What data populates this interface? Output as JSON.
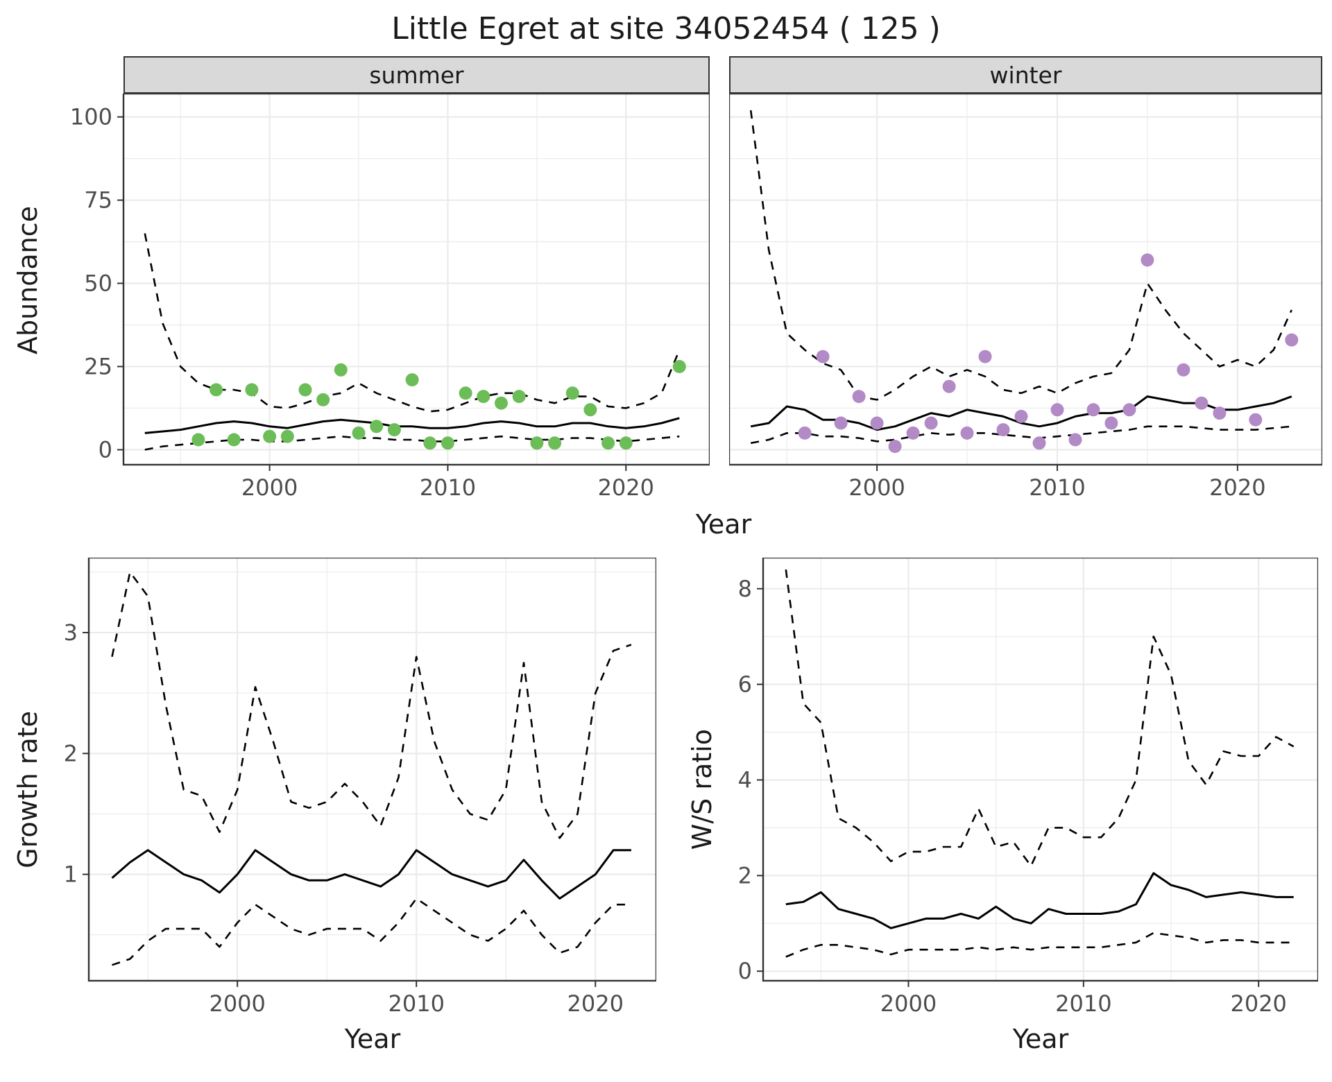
{
  "title": "Little Egret at site 34052454 ( 125 )",
  "axis_labels": {
    "abundance": "Abundance",
    "year_top": "Year",
    "growth_rate": "Growth rate",
    "ws_ratio": "W/S ratio",
    "year_bottom_left": "Year",
    "year_bottom_right": "Year"
  },
  "colors": {
    "summer_points": "#6cbd57",
    "winter_points": "#b28ac6",
    "line": "#000000",
    "strip_bg": "#d9d9d9",
    "grid": "#ebebeb",
    "panel_border": "#333333"
  },
  "chart_data": [
    {
      "id": "abundance-summer",
      "type": "line+scatter",
      "facet_label": "summer",
      "xlabel": "Year",
      "ylabel": "Abundance",
      "xlim": [
        1991.8,
        2024.7
      ],
      "ylim": [
        -4.5,
        107
      ],
      "xticks": [
        2000,
        2010,
        2020
      ],
      "yticks": [
        0,
        25,
        50,
        75,
        100
      ],
      "x": [
        1993,
        1994,
        1995,
        1996,
        1997,
        1998,
        1999,
        2000,
        2001,
        2002,
        2003,
        2004,
        2005,
        2006,
        2007,
        2008,
        2009,
        2010,
        2011,
        2012,
        2013,
        2014,
        2015,
        2016,
        2017,
        2018,
        2019,
        2020,
        2021,
        2022,
        2023
      ],
      "series": [
        {
          "name": "mean",
          "style": "solid",
          "values": [
            5,
            5.5,
            6,
            7,
            8,
            8.5,
            8,
            7,
            6.5,
            7.5,
            8.5,
            9,
            8.5,
            8,
            7,
            7,
            6.5,
            6.5,
            7,
            8,
            8.5,
            8,
            7,
            7,
            8,
            8,
            7,
            6.5,
            7,
            8,
            9.5
          ]
        },
        {
          "name": "upper_ci",
          "style": "dashed",
          "values": [
            65,
            38,
            25,
            20,
            18,
            18,
            17,
            13,
            12.5,
            14,
            16,
            17,
            20,
            17,
            15,
            13,
            11.5,
            12,
            14,
            16,
            17,
            17,
            15,
            14,
            16,
            16,
            13,
            12.5,
            14,
            17,
            30
          ]
        },
        {
          "name": "lower_ci",
          "style": "dashed",
          "values": [
            0,
            1,
            1.5,
            2,
            2.5,
            3,
            3,
            2.5,
            2.5,
            3,
            3.5,
            4,
            3.5,
            3.5,
            3,
            3,
            2.5,
            2.5,
            3,
            3.5,
            4,
            3.5,
            3,
            3,
            3.5,
            3.5,
            3,
            2.5,
            3,
            3.5,
            4
          ]
        }
      ],
      "points": {
        "name": "observed-counts",
        "color_key": "summer_points",
        "x": [
          1996,
          1997,
          1998,
          1999,
          2000,
          2001,
          2002,
          2003,
          2004,
          2005,
          2006,
          2007,
          2008,
          2009,
          2010,
          2011,
          2012,
          2013,
          2014,
          2015,
          2016,
          2017,
          2018,
          2019,
          2020,
          2023
        ],
        "y": [
          3,
          18,
          3,
          18,
          4,
          4,
          18,
          15,
          24,
          5,
          7,
          6,
          21,
          2,
          2,
          17,
          16,
          14,
          16,
          2,
          2,
          17,
          12,
          2,
          2,
          25
        ]
      }
    },
    {
      "id": "abundance-winter",
      "type": "line+scatter",
      "facet_label": "winter",
      "xlabel": "Year",
      "ylabel": "Abundance",
      "xlim": [
        1991.8,
        2024.7
      ],
      "ylim": [
        -4.5,
        107
      ],
      "xticks": [
        2000,
        2010,
        2020
      ],
      "yticks": [
        0,
        25,
        50,
        75,
        100
      ],
      "x": [
        1993,
        1994,
        1995,
        1996,
        1997,
        1998,
        1999,
        2000,
        2001,
        2002,
        2003,
        2004,
        2005,
        2006,
        2007,
        2008,
        2009,
        2010,
        2011,
        2012,
        2013,
        2014,
        2015,
        2016,
        2017,
        2018,
        2019,
        2020,
        2021,
        2022,
        2023
      ],
      "series": [
        {
          "name": "mean",
          "style": "solid",
          "values": [
            7,
            8,
            13,
            12,
            9,
            9,
            8,
            6,
            7,
            9,
            11,
            10,
            12,
            11,
            10,
            8,
            7,
            8,
            10,
            11,
            11,
            12,
            16,
            15,
            14,
            14,
            12,
            12,
            13,
            14,
            16
          ]
        },
        {
          "name": "upper_ci",
          "style": "dashed",
          "values": [
            102,
            60,
            35,
            30,
            26,
            24,
            16,
            15,
            18,
            22,
            25,
            22,
            24,
            22,
            18,
            17,
            19,
            17,
            20,
            22,
            23,
            30,
            50,
            42,
            35,
            30,
            25,
            27,
            25,
            30,
            42
          ]
        },
        {
          "name": "lower_ci",
          "style": "dashed",
          "values": [
            2,
            3,
            5,
            5,
            4,
            4,
            3.5,
            2.5,
            3,
            4,
            5,
            4.5,
            5,
            5,
            4.5,
            4,
            3.5,
            4,
            4.5,
            5,
            5.5,
            6,
            7,
            7,
            7,
            6.5,
            6,
            6,
            6,
            6.5,
            7
          ]
        }
      ],
      "points": {
        "name": "observed-counts",
        "color_key": "winter_points",
        "x": [
          1996,
          1997,
          1998,
          1999,
          2000,
          2001,
          2002,
          2003,
          2004,
          2005,
          2006,
          2007,
          2008,
          2009,
          2010,
          2011,
          2012,
          2013,
          2014,
          2015,
          2017,
          2018,
          2019,
          2021,
          2023
        ],
        "y": [
          5,
          28,
          8,
          16,
          8,
          1,
          5,
          8,
          19,
          5,
          28,
          6,
          10,
          2,
          12,
          3,
          12,
          8,
          12,
          57,
          24,
          14,
          11,
          9,
          33
        ]
      }
    },
    {
      "id": "growth-rate",
      "type": "line",
      "facet_label": "",
      "xlabel": "Year",
      "ylabel": "Growth rate",
      "xlim": [
        1991.7,
        2023.4
      ],
      "ylim": [
        0.12,
        3.62
      ],
      "xticks": [
        2000,
        2010,
        2020
      ],
      "yticks": [
        1,
        2,
        3
      ],
      "x": [
        1993,
        1994,
        1995,
        1996,
        1997,
        1998,
        1999,
        2000,
        2001,
        2002,
        2003,
        2004,
        2005,
        2006,
        2007,
        2008,
        2009,
        2010,
        2011,
        2012,
        2013,
        2014,
        2015,
        2016,
        2017,
        2018,
        2019,
        2020,
        2021,
        2022
      ],
      "series": [
        {
          "name": "mean",
          "style": "solid",
          "values": [
            0.97,
            1.1,
            1.2,
            1.1,
            1.0,
            0.95,
            0.85,
            1.0,
            1.2,
            1.1,
            1.0,
            0.95,
            0.95,
            1.0,
            0.95,
            0.9,
            1.0,
            1.2,
            1.1,
            1.0,
            0.95,
            0.9,
            0.95,
            1.12,
            0.95,
            0.8,
            0.9,
            1.0,
            1.2,
            1.2
          ]
        },
        {
          "name": "upper_ci",
          "style": "dashed",
          "values": [
            2.8,
            3.5,
            3.3,
            2.4,
            1.7,
            1.65,
            1.35,
            1.7,
            2.55,
            2.1,
            1.6,
            1.55,
            1.6,
            1.75,
            1.6,
            1.4,
            1.8,
            2.8,
            2.1,
            1.7,
            1.5,
            1.45,
            1.7,
            2.75,
            1.6,
            1.3,
            1.5,
            2.5,
            2.85,
            2.9
          ]
        },
        {
          "name": "lower_ci",
          "style": "dashed",
          "values": [
            0.25,
            0.3,
            0.45,
            0.55,
            0.55,
            0.55,
            0.4,
            0.6,
            0.75,
            0.65,
            0.55,
            0.5,
            0.55,
            0.55,
            0.55,
            0.45,
            0.6,
            0.8,
            0.7,
            0.6,
            0.5,
            0.45,
            0.55,
            0.7,
            0.5,
            0.35,
            0.4,
            0.6,
            0.75,
            0.75
          ]
        }
      ]
    },
    {
      "id": "ws-ratio",
      "type": "line",
      "facet_label": "",
      "xlabel": "Year",
      "ylabel": "W/S ratio",
      "xlim": [
        1991.7,
        2023.4
      ],
      "ylim": [
        -0.2,
        8.65
      ],
      "xticks": [
        2000,
        2010,
        2020
      ],
      "yticks": [
        0,
        2,
        4,
        6,
        8
      ],
      "x": [
        1993,
        1994,
        1995,
        1996,
        1997,
        1998,
        1999,
        2000,
        2001,
        2002,
        2003,
        2004,
        2005,
        2006,
        2007,
        2008,
        2009,
        2010,
        2011,
        2012,
        2013,
        2014,
        2015,
        2016,
        2017,
        2018,
        2019,
        2020,
        2021,
        2022
      ],
      "series": [
        {
          "name": "mean",
          "style": "solid",
          "values": [
            1.4,
            1.45,
            1.65,
            1.3,
            1.2,
            1.1,
            0.9,
            1.0,
            1.1,
            1.1,
            1.2,
            1.1,
            1.35,
            1.1,
            1.0,
            1.3,
            1.2,
            1.2,
            1.2,
            1.25,
            1.4,
            2.05,
            1.8,
            1.7,
            1.55,
            1.6,
            1.65,
            1.6,
            1.55,
            1.55
          ]
        },
        {
          "name": "upper_ci",
          "style": "dashed",
          "values": [
            8.4,
            5.6,
            5.2,
            3.2,
            3.0,
            2.7,
            2.3,
            2.5,
            2.5,
            2.6,
            2.6,
            3.4,
            2.6,
            2.7,
            2.2,
            3.0,
            3.0,
            2.8,
            2.8,
            3.2,
            4.0,
            7.0,
            6.2,
            4.4,
            3.9,
            4.6,
            4.5,
            4.5,
            4.9,
            4.7
          ]
        },
        {
          "name": "lower_ci",
          "style": "dashed",
          "values": [
            0.3,
            0.45,
            0.55,
            0.55,
            0.5,
            0.45,
            0.35,
            0.45,
            0.45,
            0.45,
            0.45,
            0.5,
            0.45,
            0.5,
            0.45,
            0.5,
            0.5,
            0.5,
            0.5,
            0.55,
            0.6,
            0.8,
            0.75,
            0.7,
            0.6,
            0.65,
            0.65,
            0.6,
            0.6,
            0.6
          ]
        }
      ]
    }
  ]
}
